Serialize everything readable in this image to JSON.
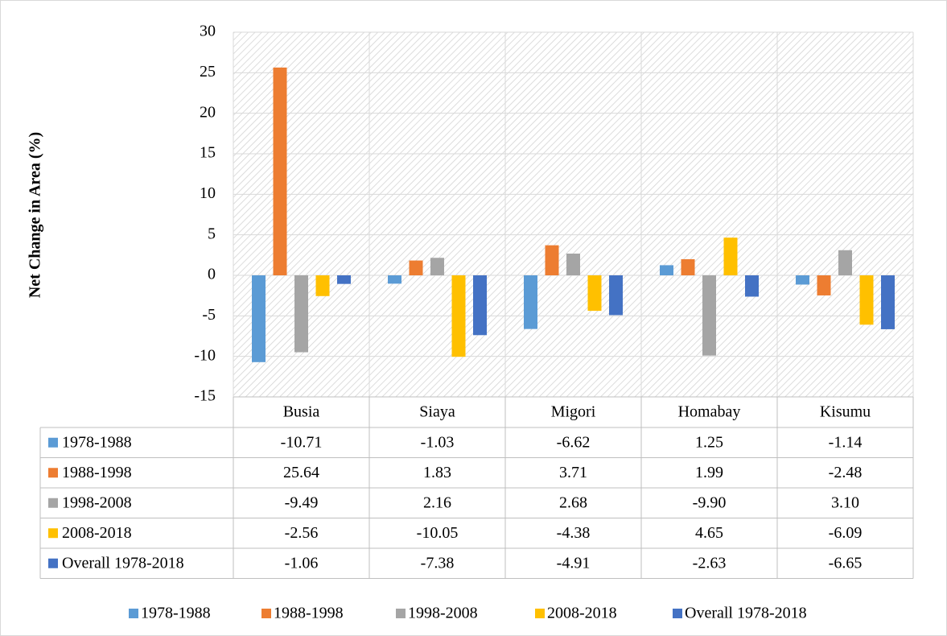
{
  "chart_data": {
    "type": "bar",
    "y_label": "Net Change in Area (%)",
    "categories": [
      "Busia",
      "Siaya",
      "Migori",
      "Homabay",
      "Kisumu"
    ],
    "series": [
      {
        "name": "1978-1988",
        "color": "#5b9bd5",
        "values": [
          -10.71,
          -1.03,
          -6.62,
          1.25,
          -1.14
        ],
        "value_labels": [
          "-10.71",
          "-1.03",
          "-6.62",
          "1.25",
          "-1.14"
        ]
      },
      {
        "name": "1988-1998",
        "color": "#ed7d31",
        "values": [
          25.64,
          1.83,
          3.71,
          1.99,
          -2.48
        ],
        "value_labels": [
          "25.64",
          "1.83",
          "3.71",
          "1.99",
          "-2.48"
        ]
      },
      {
        "name": "1998-2008",
        "color": "#a5a5a5",
        "values": [
          -9.49,
          2.16,
          2.68,
          -9.9,
          3.1
        ],
        "value_labels": [
          "-9.49",
          "2.16",
          "2.68",
          "-9.90",
          "3.10"
        ]
      },
      {
        "name": "2008-2018",
        "color": "#ffc000",
        "values": [
          -2.56,
          -10.05,
          -4.38,
          4.65,
          -6.09
        ],
        "value_labels": [
          "-2.56",
          "-10.05",
          "-4.38",
          "4.65",
          "-6.09"
        ]
      },
      {
        "name": "Overall 1978-2018",
        "color": "#4472c4",
        "values": [
          -1.06,
          -7.38,
          -4.91,
          -2.63,
          -6.65
        ],
        "value_labels": [
          "-1.06",
          "-7.38",
          "-4.91",
          "-2.63",
          "-6.65"
        ]
      }
    ],
    "ylim": [
      -15,
      30
    ],
    "yticks": [
      -15,
      -10,
      -5,
      0,
      5,
      10,
      15,
      20,
      25,
      30
    ],
    "grid": true,
    "legend": "bottom"
  }
}
